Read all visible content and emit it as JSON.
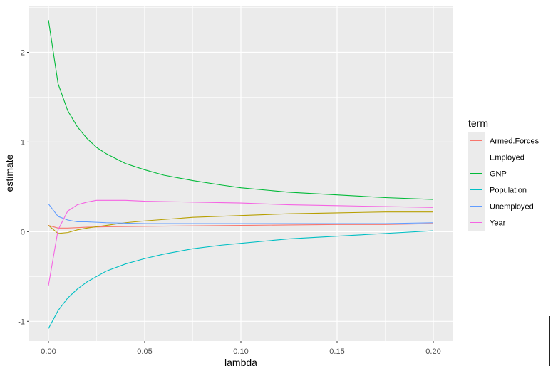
{
  "chart_data": {
    "type": "line",
    "title": "",
    "xlabel": "lambda",
    "ylabel": "estimate",
    "xlim": [
      -0.01,
      0.21
    ],
    "ylim": [
      -1.22,
      2.52
    ],
    "x_ticks": [
      0.0,
      0.05,
      0.1,
      0.15,
      0.2
    ],
    "x_tick_labels": [
      "0.00",
      "0.05",
      "0.10",
      "0.15",
      "0.20"
    ],
    "y_ticks": [
      -1,
      0,
      1,
      2
    ],
    "y_tick_labels": [
      "-1",
      "0",
      "1",
      "2"
    ],
    "grid": true,
    "legend_title": "term",
    "legend_position": "right",
    "series": [
      {
        "name": "Armed.Forces",
        "color": "#F8766D",
        "x": [
          0,
          0.005,
          0.01,
          0.02,
          0.03,
          0.05,
          0.075,
          0.1,
          0.125,
          0.15,
          0.175,
          0.2
        ],
        "y": [
          0.07,
          0.04,
          0.04,
          0.05,
          0.055,
          0.06,
          0.065,
          0.07,
          0.075,
          0.08,
          0.08,
          0.09
        ]
      },
      {
        "name": "Employed",
        "color": "#B79F00",
        "x": [
          0,
          0.005,
          0.01,
          0.015,
          0.02,
          0.03,
          0.04,
          0.05,
          0.075,
          0.1,
          0.125,
          0.15,
          0.175,
          0.2
        ],
        "y": [
          0.07,
          -0.02,
          -0.01,
          0.02,
          0.04,
          0.07,
          0.1,
          0.12,
          0.16,
          0.18,
          0.2,
          0.21,
          0.22,
          0.22
        ]
      },
      {
        "name": "GNP",
        "color": "#00BA38",
        "x": [
          0,
          0.005,
          0.01,
          0.015,
          0.02,
          0.025,
          0.03,
          0.04,
          0.05,
          0.06,
          0.075,
          0.09,
          0.1,
          0.125,
          0.15,
          0.175,
          0.2
        ],
        "y": [
          2.36,
          1.65,
          1.35,
          1.17,
          1.04,
          0.94,
          0.87,
          0.76,
          0.69,
          0.63,
          0.57,
          0.52,
          0.49,
          0.44,
          0.41,
          0.38,
          0.36
        ]
      },
      {
        "name": "Population",
        "color": "#00BFC4",
        "x": [
          0,
          0.005,
          0.01,
          0.015,
          0.02,
          0.025,
          0.03,
          0.04,
          0.05,
          0.06,
          0.075,
          0.09,
          0.1,
          0.125,
          0.15,
          0.175,
          0.2
        ],
        "y": [
          -1.08,
          -0.88,
          -0.74,
          -0.64,
          -0.56,
          -0.5,
          -0.44,
          -0.36,
          -0.3,
          -0.25,
          -0.19,
          -0.15,
          -0.13,
          -0.08,
          -0.05,
          -0.02,
          0.01
        ]
      },
      {
        "name": "Unemployed",
        "color": "#619CFF",
        "x": [
          0,
          0.005,
          0.01,
          0.015,
          0.02,
          0.03,
          0.05,
          0.075,
          0.1,
          0.125,
          0.15,
          0.175,
          0.2
        ],
        "y": [
          0.31,
          0.17,
          0.13,
          0.11,
          0.11,
          0.1,
          0.09,
          0.09,
          0.09,
          0.09,
          0.09,
          0.09,
          0.1
        ]
      },
      {
        "name": "Year",
        "color": "#F564E3",
        "x": [
          0,
          0.005,
          0.01,
          0.015,
          0.02,
          0.025,
          0.03,
          0.04,
          0.05,
          0.075,
          0.1,
          0.125,
          0.15,
          0.175,
          0.2
        ],
        "y": [
          -0.6,
          0.02,
          0.23,
          0.3,
          0.33,
          0.35,
          0.35,
          0.35,
          0.34,
          0.33,
          0.32,
          0.3,
          0.29,
          0.28,
          0.27
        ]
      }
    ]
  }
}
